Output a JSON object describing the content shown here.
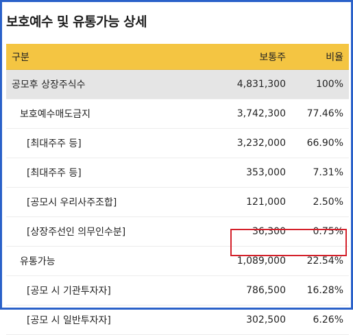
{
  "title": "보호예수 및 유통가능 상세",
  "header": {
    "col_label": "구분",
    "col_shares": "보통주",
    "col_ratio": "비율"
  },
  "rows": [
    {
      "label": "공모후 상장주식수",
      "shares": "4,831,300",
      "ratio": "100%"
    },
    {
      "label": "보호예수매도금지",
      "shares": "3,742,300",
      "ratio": "77.46%"
    },
    {
      "label": "[최대주주 등]",
      "shares": "3,232,000",
      "ratio": "66.90%"
    },
    {
      "label": "[최대주주 등]",
      "shares": "353,000",
      "ratio": "7.31%"
    },
    {
      "label": "[공모시 우리사주조합]",
      "shares": "121,000",
      "ratio": "2.50%"
    },
    {
      "label": "[상장주선인 의무인수분]",
      "shares": "36,300",
      "ratio": "0.75%"
    },
    {
      "label": "유통가능",
      "shares": "1,089,000",
      "ratio": "22.54%"
    },
    {
      "label": "[공모 시 기관투자자]",
      "shares": "786,500",
      "ratio": "16.28%"
    },
    {
      "label": "[공모 시 일반투자자]",
      "shares": "302,500",
      "ratio": "6.26%"
    }
  ],
  "colors": {
    "frame_border": "#2a61c9",
    "header_bg": "#f4c542",
    "total_row_bg": "#e5e5e5",
    "highlight_border": "#d4202a"
  }
}
